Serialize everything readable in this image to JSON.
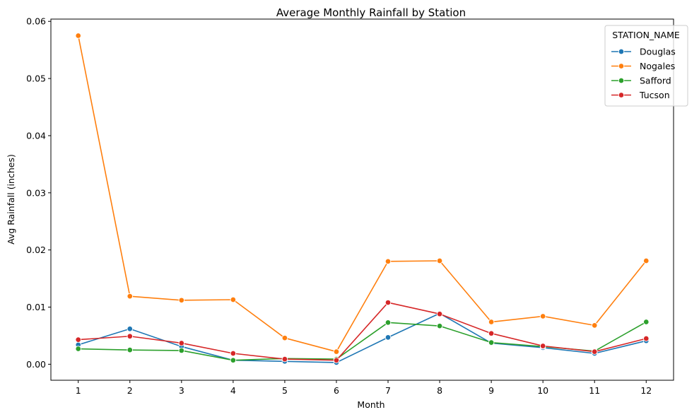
{
  "chart_data": {
    "type": "line",
    "title": "Average Monthly Rainfall by Station",
    "xlabel": "Month",
    "ylabel": "Avg Rainfall (inches)",
    "x": [
      1,
      2,
      3,
      4,
      5,
      6,
      7,
      8,
      9,
      10,
      11,
      12
    ],
    "x_tick_labels": [
      "1",
      "2",
      "3",
      "4",
      "5",
      "6",
      "7",
      "8",
      "9",
      "10",
      "11",
      "12"
    ],
    "y_ticks": [
      0.0,
      0.01,
      0.02,
      0.03,
      0.04,
      0.05,
      0.06
    ],
    "y_tick_labels": [
      "0.00",
      "0.01",
      "0.02",
      "0.03",
      "0.04",
      "0.05",
      "0.06"
    ],
    "xlim": [
      0.47,
      12.53
    ],
    "ylim": [
      -0.0028,
      0.0604
    ],
    "grid": false,
    "legend": {
      "title": "STATION_NAME",
      "placement": "top-right"
    },
    "series": [
      {
        "name": "Douglas",
        "color": "#1f77b4",
        "values": [
          0.0034,
          0.0062,
          0.0031,
          0.0007,
          0.0005,
          0.0003,
          0.0047,
          0.0089,
          0.0037,
          0.0029,
          0.0019,
          0.0041
        ]
      },
      {
        "name": "Nogales",
        "color": "#ff7f0e",
        "values": [
          0.0575,
          0.0119,
          0.0112,
          0.0113,
          0.0046,
          0.0022,
          0.018,
          0.0181,
          0.0074,
          0.0084,
          0.0068,
          0.0181
        ]
      },
      {
        "name": "Safford",
        "color": "#2ca02c",
        "values": [
          0.0027,
          0.0025,
          0.0024,
          0.0007,
          0.001,
          0.0009,
          0.0073,
          0.0067,
          0.0038,
          0.0031,
          0.0023,
          0.0074
        ]
      },
      {
        "name": "Tucson",
        "color": "#d62728",
        "values": [
          0.0043,
          0.0049,
          0.0037,
          0.0019,
          0.0009,
          0.0007,
          0.0108,
          0.0088,
          0.0054,
          0.0032,
          0.0022,
          0.0045
        ]
      }
    ]
  }
}
